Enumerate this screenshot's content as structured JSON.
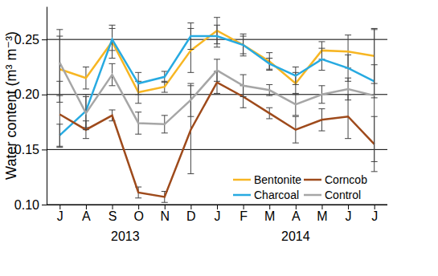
{
  "chart_data": {
    "type": "line",
    "y_label": "Water content (m³ m⁻³)",
    "categories": [
      "J",
      "A",
      "S",
      "O",
      "N",
      "D",
      "J",
      "F",
      "M",
      "A",
      "M",
      "J",
      "J"
    ],
    "x_groups": [
      {
        "label": "2013",
        "from": 0,
        "to": 5
      },
      {
        "label": "2014",
        "from": 6,
        "to": 12
      }
    ],
    "ylim": [
      0.1,
      0.28
    ],
    "yticks": [
      {
        "value": 0.1,
        "label": "0.10"
      },
      {
        "value": 0.15,
        "label": "0.15"
      },
      {
        "value": 0.2,
        "label": "0.20"
      },
      {
        "value": 0.25,
        "label": "0.25"
      }
    ],
    "grid": true,
    "legend": "lower right",
    "series": [
      {
        "name": "Bentonite",
        "color": "#f7b623",
        "values": [
          0.223,
          0.215,
          0.248,
          0.202,
          0.207,
          0.24,
          0.258,
          0.245,
          0.23,
          0.21,
          0.24,
          0.239,
          0.235
        ],
        "errors": [
          0.03,
          0.01,
          0.015,
          0.01,
          0.005,
          0.02,
          0.012,
          0.01,
          0.008,
          0.01,
          0.008,
          0.015,
          0.025
        ]
      },
      {
        "name": "Charcoal",
        "color": "#27aae1",
        "values": [
          0.163,
          0.185,
          0.25,
          0.21,
          0.216,
          0.253,
          0.253,
          0.245,
          0.228,
          0.217,
          0.232,
          0.224,
          0.212
        ],
        "errors": [
          0.01,
          0.015,
          0.01,
          0.01,
          0.005,
          0.012,
          0.01,
          0.008,
          0.005,
          0.008,
          0.01,
          0.012,
          0.015
        ]
      },
      {
        "name": "Corncob",
        "color": "#9e4a1b",
        "values": [
          0.182,
          0.168,
          0.181,
          0.111,
          0.107,
          0.168,
          0.211,
          0.198,
          0.183,
          0.168,
          0.177,
          0.18,
          0.155
        ],
        "errors": [
          0.03,
          0.008,
          0.005,
          0.005,
          0.005,
          0.04,
          0.01,
          0.01,
          0.005,
          0.012,
          0.01,
          0.02,
          0.025
        ]
      },
      {
        "name": "Control",
        "color": "#a6a6a6",
        "values": [
          0.229,
          0.183,
          0.218,
          0.174,
          0.173,
          0.195,
          0.222,
          0.208,
          0.204,
          0.191,
          0.2,
          0.205,
          0.199
        ],
        "errors": [
          0.03,
          0.015,
          0.01,
          0.01,
          0.008,
          0.015,
          0.01,
          0.01,
          0.005,
          0.01,
          0.008,
          0.01,
          0.06
        ]
      }
    ]
  }
}
